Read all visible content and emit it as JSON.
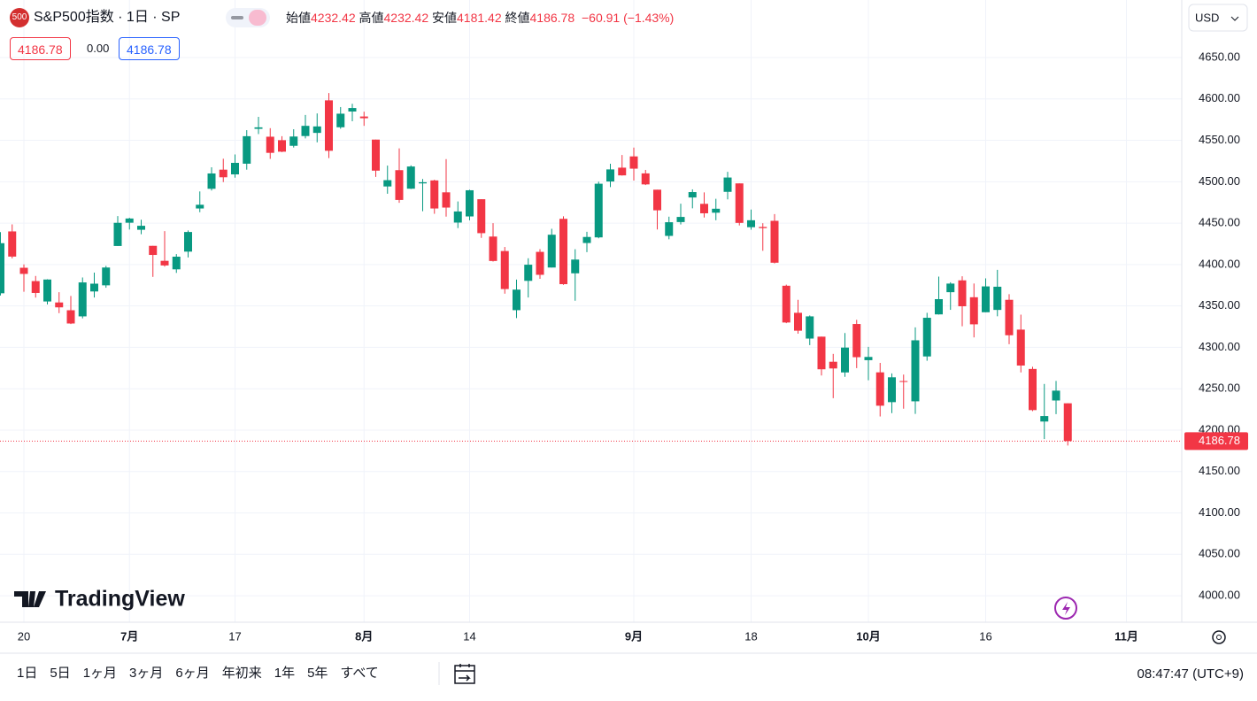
{
  "header": {
    "badge": "500",
    "symbol": "S&P500指数 · 1日 · SP",
    "open_label": "始値",
    "open": "4232.42",
    "high_label": "高値",
    "high": "4232.42",
    "low_label": "安値",
    "low": "4181.42",
    "close_label": "終値",
    "close": "4186.78",
    "change": "−60.91 (−1.43%)",
    "box1": "4186.78",
    "box2": "0.00",
    "box3": "4186.78",
    "currency": "USD"
  },
  "logo": "TradingView",
  "toolbar": {
    "ranges": [
      "1日",
      "5日",
      "1ヶ月",
      "3ヶ月",
      "6ヶ月",
      "年初来",
      "1年",
      "5年",
      "すべて"
    ],
    "clock": "08:47:47 (UTC+9)"
  },
  "chart_data": {
    "type": "candlestick",
    "up_color": "#089981",
    "down_color": "#f23645",
    "grid": true,
    "ylim": [
      3968,
      4719.5
    ],
    "yticks": [
      {
        "value": 4000,
        "label": "4000.00"
      },
      {
        "value": 4050,
        "label": "4050.00"
      },
      {
        "value": 4100,
        "label": "4100.00"
      },
      {
        "value": 4150,
        "label": "4150.00"
      },
      {
        "value": 4200,
        "label": "4200.00"
      },
      {
        "value": 4250,
        "label": "4250.00"
      },
      {
        "value": 4300,
        "label": "4300.00"
      },
      {
        "value": 4350,
        "label": "4350.00"
      },
      {
        "value": 4400,
        "label": "4400.00"
      },
      {
        "value": 4450,
        "label": "4450.00"
      },
      {
        "value": 4500,
        "label": "4500.00"
      },
      {
        "value": 4550,
        "label": "4550.00"
      },
      {
        "value": 4600,
        "label": "4600.00"
      },
      {
        "value": 4650,
        "label": "4650.00"
      }
    ],
    "last_price": {
      "value": 4186.78,
      "label": "4186.78"
    },
    "categories": [
      null,
      null,
      "20",
      null,
      null,
      null,
      null,
      null,
      null,
      null,
      null,
      "7月",
      null,
      null,
      null,
      null,
      null,
      null,
      null,
      null,
      "17",
      null,
      null,
      null,
      null,
      null,
      null,
      null,
      null,
      null,
      null,
      "8月",
      null,
      null,
      null,
      null,
      null,
      null,
      null,
      null,
      "14",
      null,
      null,
      null,
      null,
      null,
      null,
      null,
      null,
      null,
      null,
      null,
      null,
      null,
      "9月",
      null,
      null,
      null,
      null,
      null,
      null,
      null,
      null,
      null,
      "18",
      null,
      null,
      null,
      null,
      null,
      null,
      null,
      null,
      null,
      "10月",
      null,
      null,
      null,
      null,
      null,
      null,
      null,
      null,
      null,
      "16",
      null,
      null,
      null,
      null,
      null,
      null,
      null,
      null,
      null,
      null,
      null,
      "11月"
    ],
    "open": [
      4365.3,
      4440.0,
      4396.1,
      4380.0,
      4355.4,
      4354.2,
      4344.8,
      4337.4,
      4367.5,
      4374.9,
      4422.4,
      4450.5,
      4442.0,
      4422.6,
      4404.5,
      4394.2,
      4415.6,
      4467.7,
      4491.5,
      4514.6,
      4508.9,
      4521.8,
      4563.9,
      4554.4,
      4550.2,
      4543.4,
      4555.2,
      4559.0,
      4598.3,
      4565.8,
      4584.8,
      4578.8,
      4550.9,
      4494.3,
      4514.0,
      4491.6,
      4498.0,
      4501.6,
      4487.2,
      4450.7,
      4458.1,
      4478.9,
      4433.8,
      4416.3,
      4344.9,
      4380.3,
      4415.3,
      4396.4,
      4455.2,
      4389.4,
      4426.0,
      4432.8,
      4500.3,
      4517.0,
      4530.6,
      4510.1,
      4490.4,
      4434.6,
      4451.3,
      4481.0,
      4473.3,
      4462.6,
      4487.8,
      4498.0,
      4445.1,
      4445.4,
      4452.8,
      4374.4,
      4341.7,
      4310.6,
      4312.9,
      4282.6,
      4269.7,
      4328.2,
      4284.5,
      4269.8,
      4233.8,
      4259.3,
      4234.8,
      4289.0,
      4339.8,
      4366.6,
      4380.9,
      4360.5,
      4342.4,
      4345.2,
      4357.4,
      4321.4,
      4273.9,
      4210.4,
      4235.8,
      4232.42,
      null,
      null,
      null,
      null,
      null
    ],
    "high": [
      4439.2,
      4448.5,
      4400.1,
      4386.2,
      4382.2,
      4366.6,
      4362.1,
      4384.4,
      4390.3,
      4398.4,
      4458.5,
      4456.5,
      4454.1,
      4422.6,
      4440.4,
      4412.6,
      4441.2,
      4488.3,
      4517.4,
      4527.8,
      4532.9,
      4562.3,
      4578.4,
      4564.7,
      4555.0,
      4563.4,
      4580.6,
      4582.5,
      4607.1,
      4590.2,
      4594.2,
      4584.6,
      4550.9,
      4519.5,
      4540.3,
      4519.8,
      4503.3,
      4502.4,
      4527.4,
      4476.2,
      4490.3,
      4478.9,
      4450.0,
      4421.2,
      4381.8,
      4407.6,
      4418.6,
      4443.2,
      4458.3,
      4418.5,
      4439.6,
      4500.1,
      4521.7,
      4532.3,
      4541.3,
      4514.3,
      4490.4,
      4457.8,
      4473.5,
      4490.8,
      4487.1,
      4479.4,
      4512.0,
      4498.0,
      4466.4,
      4449.9,
      4461.0,
      4375.7,
      4357.4,
      4338.5,
      4313.0,
      4292.1,
      4317.3,
      4333.2,
      4300.6,
      4281.2,
      4268.5,
      4267.1,
      4324.1,
      4341.7,
      4385.5,
      4378.6,
      4385.9,
      4377.1,
      4383.3,
      4393.6,
      4364.2,
      4339.5,
      4276.6,
      4255.8,
      4259.4,
      4232.42,
      null,
      null,
      null,
      null,
      null
    ],
    "low": [
      4362.6,
      4407.4,
      4367.2,
      4360.1,
      4351.8,
      4341.3,
      4328.1,
      4335.0,
      4360.2,
      4372.0,
      4422.4,
      4442.3,
      4436.6,
      4385.1,
      4397.4,
      4389.9,
      4408.5,
      4463.2,
      4489.4,
      4499.6,
      4504.9,
      4514.6,
      4557.5,
      4527.6,
      4535.8,
      4541.3,
      4552.4,
      4547.6,
      4528.6,
      4564.0,
      4573.1,
      4567.5,
      4505.8,
      4485.5,
      4474.6,
      4491.2,
      4464.4,
      4461.3,
      4457.9,
      4444.0,
      4453.4,
      4432.2,
      4403.6,
      4364.8,
      4335.3,
      4360.2,
      4382.8,
      4396.4,
      4375.6,
      4356.3,
      4415.0,
      4431.7,
      4493.6,
      4507.4,
      4501.4,
      4496.0,
      4442.4,
      4430.5,
      4448.4,
      4467.9,
      4456.8,
      4453.5,
      4478.7,
      4447.2,
      4442.1,
      4416.6,
      4401.4,
      4329.2,
      4316.5,
      4302.7,
      4266.0,
      4238.6,
      4264.4,
      4274.9,
      4260.2,
      4216.5,
      4220.5,
      4225.9,
      4219.6,
      4283.8,
      4339.6,
      4345.3,
      4325.4,
      4312.0,
      4342.4,
      4337.5,
      4303.8,
      4269.7,
      4223.0,
      4189.2,
      4219.4,
      4181.42,
      null,
      null,
      null,
      null,
      null
    ],
    "close": [
      4425.8,
      4409.6,
      4388.7,
      4365.7,
      4381.9,
      4348.3,
      4328.8,
      4378.4,
      4376.9,
      4396.4,
      4450.4,
      4455.6,
      4446.8,
      4411.6,
      4398.9,
      4409.5,
      4439.3,
      4472.2,
      4510.0,
      4505.4,
      4522.8,
      4555.0,
      4565.7,
      4534.9,
      4536.3,
      4554.6,
      4567.5,
      4566.8,
      4537.4,
      4582.2,
      4589.0,
      4576.7,
      4513.4,
      4501.9,
      4478.0,
      4518.4,
      4499.4,
      4467.7,
      4468.8,
      4464.1,
      4489.7,
      4437.9,
      4404.3,
      4370.4,
      4369.7,
      4399.8,
      4387.6,
      4436.0,
      4376.3,
      4406.0,
      4433.3,
      4497.6,
      4514.9,
      4507.7,
      4515.8,
      4496.8,
      4465.5,
      4451.1,
      4457.5,
      4487.5,
      4461.9,
      4467.4,
      4505.1,
      4450.3,
      4453.5,
      4444.0,
      4402.2,
      4330.0,
      4320.1,
      4337.4,
      4273.5,
      4274.5,
      4299.7,
      4288.1,
      4288.4,
      4229.5,
      4263.8,
      4258.2,
      4308.5,
      4335.7,
      4358.2,
      4377.0,
      4349.6,
      4327.8,
      4373.6,
      4373.2,
      4314.6,
      4278.0,
      4224.2,
      4217.0,
      4247.7,
      4186.78,
      null,
      null,
      null,
      null,
      null
    ]
  }
}
